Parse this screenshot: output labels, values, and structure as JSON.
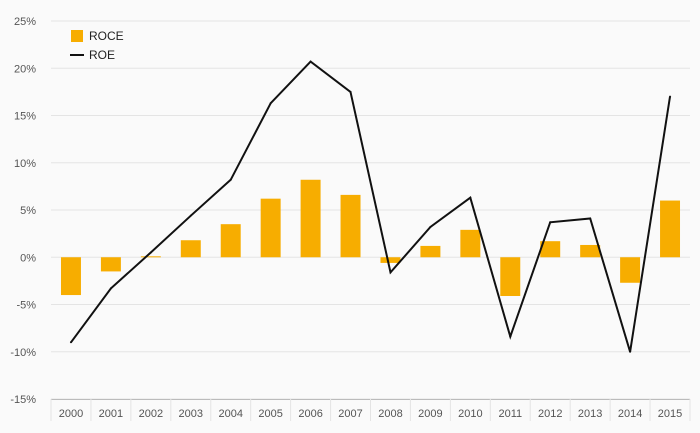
{
  "chart_data": {
    "type": "bar",
    "categories": [
      "2000",
      "2001",
      "2002",
      "2003",
      "2004",
      "2005",
      "2006",
      "2007",
      "2008",
      "2009",
      "2010",
      "2011",
      "2012",
      "2013",
      "2014",
      "2015"
    ],
    "series": [
      {
        "name": "ROCE",
        "kind": "bar",
        "values": [
          -4.0,
          -1.5,
          0.1,
          1.8,
          3.5,
          6.2,
          8.2,
          6.6,
          -0.6,
          1.2,
          2.9,
          -4.1,
          1.7,
          1.3,
          -2.7,
          6.0
        ]
      },
      {
        "name": "ROE",
        "kind": "line",
        "values": [
          -9.0,
          -3.3,
          0.5,
          4.4,
          8.2,
          16.3,
          20.7,
          17.5,
          -1.6,
          3.2,
          6.3,
          -8.4,
          3.7,
          4.1,
          -10.0,
          17.0
        ]
      }
    ],
    "ylim": [
      -15,
      25
    ],
    "yticks": [
      -15,
      -10,
      -5,
      0,
      5,
      10,
      15,
      20,
      25
    ],
    "ytick_labels": [
      "-15%",
      "-10%",
      "-5%",
      "0%",
      "5%",
      "10%",
      "15%",
      "20%",
      "25%"
    ],
    "grid": true,
    "legend": "top-left",
    "title": "",
    "xlabel": "",
    "ylabel": ""
  },
  "colors": {
    "roce": "#f7ad00",
    "roe": "#111111",
    "grid": "#e4e4e4",
    "background": "#fafafa",
    "axis": "#bbbbbb"
  },
  "legend": {
    "items": [
      {
        "label": "ROCE",
        "icon": "orange-square-icon"
      },
      {
        "label": "ROE",
        "icon": "black-line-icon"
      }
    ]
  }
}
